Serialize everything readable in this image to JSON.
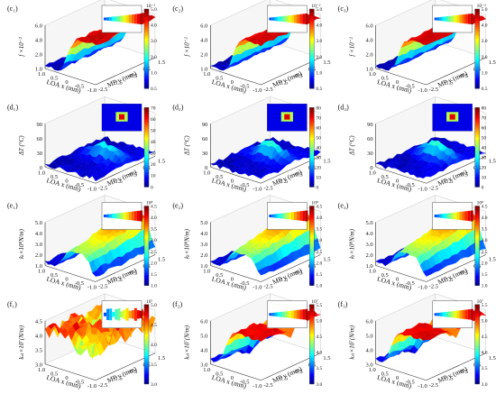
{
  "chart_data": [
    {
      "type": "surface3d",
      "row": 0,
      "col": 0,
      "panel_label": "(c₁)",
      "zlabel": "f ×10⁻²",
      "xlabel": "LOA x (mm)",
      "ylabel": "MP y (mm)",
      "z_ticks": [
        "1.0",
        "2.0",
        "4.0",
        "6.0"
      ],
      "x_ticks": [
        "1.0",
        "0.5",
        "0",
        "-0.5",
        "-1.0"
      ],
      "y_ticks": [
        "-2.5",
        "-1.5",
        "-0.5",
        "0.5",
        "1.5"
      ],
      "colorbar": {
        "exponent": "10⁻²",
        "ticks": [
          "5.0",
          "4.0",
          "3.0",
          "2.0",
          "1.0",
          "0.5"
        ],
        "range": [
          0.5,
          5.0
        ]
      },
      "surface": {
        "shape": "step",
        "low": 0.05,
        "high": 0.92,
        "noise": 0.04
      }
    },
    {
      "type": "surface3d",
      "row": 0,
      "col": 1,
      "panel_label": "(c₂)",
      "zlabel": "f ×10⁻²",
      "xlabel": "LOA x (mm)",
      "ylabel": "MP y (mm)",
      "z_ticks": [
        "1.0",
        "2.0",
        "4.0",
        "6.0"
      ],
      "x_ticks": [
        "1.0",
        "0.5",
        "0",
        "-0.5",
        "-1.0"
      ],
      "y_ticks": [
        "-2.5",
        "-1.5",
        "-0.5",
        "0.5",
        "1.5"
      ],
      "colorbar": {
        "exponent": "10⁻²",
        "ticks": [
          "5.0",
          "4.0",
          "3.0",
          "2.0",
          "1.0",
          "0.5"
        ],
        "range": [
          0.5,
          5.0
        ]
      },
      "surface": {
        "shape": "step",
        "low": 0.05,
        "high": 0.92,
        "noise": 0.03
      }
    },
    {
      "type": "surface3d",
      "row": 0,
      "col": 2,
      "panel_label": "(c₃)",
      "zlabel": "f ×10⁻²",
      "xlabel": "LOA x (mm)",
      "ylabel": "MP y (mm)",
      "z_ticks": [
        "1.0",
        "2.0",
        "4.0",
        "6.0"
      ],
      "x_ticks": [
        "1.0",
        "0.5",
        "0",
        "-0.5",
        "-1.0"
      ],
      "y_ticks": [
        "-2.5",
        "-1.5",
        "-0.5",
        "0.5",
        "1.5"
      ],
      "colorbar": {
        "exponent": "10⁻²",
        "ticks": [
          "5.0",
          "4.0",
          "3.0",
          "2.0",
          "1.0",
          "0.5"
        ],
        "range": [
          0.5,
          5.0
        ]
      },
      "surface": {
        "shape": "step",
        "low": 0.05,
        "high": 0.92,
        "noise": 0.03
      }
    },
    {
      "type": "surface3d",
      "row": 1,
      "col": 0,
      "panel_label": "(d₁)",
      "zlabel": "ΔT (°C)",
      "xlabel": "LOA x (mm)",
      "ylabel": "MP y (mm)",
      "z_ticks": [
        "0",
        "30",
        "60",
        "90"
      ],
      "x_ticks": [
        "1.0",
        "0.5",
        "0",
        "-0.5",
        "-1.0"
      ],
      "y_ticks": [
        "-2.5",
        "-1.5",
        "-0.5",
        "0.5",
        "1.5"
      ],
      "colorbar": {
        "exponent": "",
        "ticks": [
          "70",
          "60",
          "50",
          "40",
          "30",
          "20",
          "10",
          "0"
        ],
        "range": [
          0,
          70
        ]
      },
      "surface": {
        "shape": "ridge",
        "low": 0.02,
        "high": 0.55,
        "noise": 0.05
      }
    },
    {
      "type": "surface3d",
      "row": 1,
      "col": 1,
      "panel_label": "(d₂)",
      "zlabel": "ΔT (°C)",
      "xlabel": "LOA x (mm)",
      "ylabel": "MP y (mm)",
      "z_ticks": [
        "0",
        "30",
        "60",
        "90"
      ],
      "x_ticks": [
        "1.0",
        "0.5",
        "0",
        "-0.5",
        "-1.0"
      ],
      "y_ticks": [
        "-2.5",
        "-1.5",
        "-0.5",
        "0.5",
        "1.5"
      ],
      "colorbar": {
        "exponent": "",
        "ticks": [
          "80",
          "70",
          "60",
          "50",
          "40",
          "30",
          "20",
          "10",
          "0"
        ],
        "range": [
          0,
          80
        ]
      },
      "surface": {
        "shape": "ridge",
        "low": 0.02,
        "high": 0.6,
        "noise": 0.05
      }
    },
    {
      "type": "surface3d",
      "row": 1,
      "col": 2,
      "panel_label": "(d₃)",
      "zlabel": "ΔT (°C)",
      "xlabel": "LOA x (mm)",
      "ylabel": "MP y (mm)",
      "z_ticks": [
        "0",
        "30",
        "60",
        "90"
      ],
      "x_ticks": [
        "1.0",
        "0.5",
        "0",
        "-0.5",
        "-1.0"
      ],
      "y_ticks": [
        "-2.5",
        "-1.5",
        "-0.5",
        "0.5",
        "1.5"
      ],
      "colorbar": {
        "exponent": "",
        "ticks": [
          "80",
          "70",
          "60",
          "50",
          "40",
          "30",
          "20",
          "10",
          "0"
        ],
        "range": [
          0,
          80
        ]
      },
      "surface": {
        "shape": "ridge",
        "low": 0.02,
        "high": 0.62,
        "noise": 0.05
      }
    },
    {
      "type": "surface3d",
      "row": 2,
      "col": 0,
      "panel_label": "(e₁)",
      "zlabel": "kₜ×10⁸N/m)",
      "xlabel": "LOA x (mm)",
      "ylabel": "MP y (mm)",
      "z_ticks": [
        "1.0",
        "2.0",
        "3.0",
        "4.0",
        "5.0"
      ],
      "x_ticks": [
        "1.0",
        "0.5",
        "0",
        "-0.5",
        "-1.0"
      ],
      "y_ticks": [
        "-2.5",
        "-1.5",
        "-0.5",
        "0.5",
        "1.5"
      ],
      "colorbar": {
        "exponent": "10⁸",
        "ticks": [
          "4.5",
          "4.0",
          "3.5",
          "3.0",
          "2.5",
          "2.0",
          "1.5",
          "1.0"
        ],
        "range": [
          1.0,
          4.5
        ]
      },
      "surface": {
        "shape": "plateau",
        "low": 0.08,
        "high": 0.88,
        "noise": 0.04
      }
    },
    {
      "type": "surface3d",
      "row": 2,
      "col": 1,
      "panel_label": "(e₂)",
      "zlabel": "kₜ×10⁸N/m)",
      "xlabel": "LOA x (mm)",
      "ylabel": "MP y (mm)",
      "z_ticks": [
        "1.0",
        "2.0",
        "3.0",
        "4.0",
        "5.0"
      ],
      "x_ticks": [
        "1.0",
        "0.5",
        "0",
        "-0.5",
        "-1.0"
      ],
      "y_ticks": [
        "-2.5",
        "-1.5",
        "-0.5",
        "0.5",
        "1.5"
      ],
      "colorbar": {
        "exponent": "10⁸",
        "ticks": [
          "4.5",
          "4.0",
          "3.5",
          "3.0",
          "2.5",
          "2.0",
          "1.5",
          "1.0"
        ],
        "range": [
          1.0,
          4.5
        ]
      },
      "surface": {
        "shape": "plateau",
        "low": 0.08,
        "high": 0.88,
        "noise": 0.03
      }
    },
    {
      "type": "surface3d",
      "row": 2,
      "col": 2,
      "panel_label": "(e₃)",
      "zlabel": "kₜ×10⁸N/m)",
      "xlabel": "LOA x (mm)",
      "ylabel": "MP y (mm)",
      "z_ticks": [
        "1.0",
        "2.0",
        "3.0",
        "4.0",
        "5.0"
      ],
      "x_ticks": [
        "1.0",
        "0.5",
        "0",
        "-0.5",
        "-1.0"
      ],
      "y_ticks": [
        "-2.5",
        "-1.5",
        "-0.5",
        "0.5",
        "1.5"
      ],
      "colorbar": {
        "exponent": "10⁸",
        "ticks": [
          "4.5",
          "4.0",
          "3.5",
          "3.0",
          "2.5",
          "2.0",
          "1.5",
          "1.0"
        ],
        "range": [
          1.0,
          4.5
        ]
      },
      "surface": {
        "shape": "plateau",
        "low": 0.08,
        "high": 0.88,
        "noise": 0.03
      }
    },
    {
      "type": "surface3d",
      "row": 3,
      "col": 0,
      "panel_label": "(f₁)",
      "zlabel": "kₛₗ×10⁷(N/m)",
      "xlabel": "LOA x (mm)",
      "ylabel": "MP y (mm)",
      "z_ticks": [
        "3.0",
        "3.5",
        "4.0",
        "4.5"
      ],
      "x_ticks": [
        "1.0",
        "0.5",
        "0",
        "-0.5",
        "-1.0"
      ],
      "y_ticks": [
        "-2.5",
        "-1.5",
        "-0.5",
        "0.5",
        "1.5"
      ],
      "colorbar": {
        "exponent": "10⁷",
        "ticks": [
          "5.0",
          "4.5",
          "4.0",
          "3.5",
          "3.0"
        ],
        "range": [
          3.0,
          5.0
        ]
      },
      "surface": {
        "shape": "rough",
        "low": 0.55,
        "high": 0.85,
        "noise": 0.22
      }
    },
    {
      "type": "surface3d",
      "row": 3,
      "col": 1,
      "panel_label": "(f₂)",
      "zlabel": "kₛₗ×10⁷(N/m)",
      "xlabel": "LOA x (mm)",
      "ylabel": "MP y (mm)",
      "z_ticks": [
        "3.0",
        "4.0",
        "5.0",
        "6.0"
      ],
      "x_ticks": [
        "1.0",
        "0.5",
        "0",
        "-0.5",
        "-1.0"
      ],
      "y_ticks": [
        "-2.5",
        "-1.5",
        "-0.5",
        "0.5",
        "1.5"
      ],
      "colorbar": {
        "exponent": "10⁷",
        "ticks": [
          "5.5",
          "5.0",
          "4.5",
          "4.0",
          "3.5",
          "3.0"
        ],
        "range": [
          3.0,
          5.5
        ]
      },
      "surface": {
        "shape": "mesa",
        "low": 0.1,
        "high": 0.9,
        "noise": 0.04
      }
    },
    {
      "type": "surface3d",
      "row": 3,
      "col": 2,
      "panel_label": "(f₃)",
      "zlabel": "kₛₗ×10⁷(N/m)",
      "xlabel": "LOA x (mm)",
      "ylabel": "MP y (mm)",
      "z_ticks": [
        "3.0",
        "4.0",
        "5.0",
        "6.0"
      ],
      "x_ticks": [
        "1.0",
        "0.5",
        "0",
        "-0.5",
        "-1.0"
      ],
      "y_ticks": [
        "-2.5",
        "-1.5",
        "-0.5",
        "0.5",
        "1.5"
      ],
      "colorbar": {
        "exponent": "10⁷",
        "ticks": [
          "5.5",
          "5.0",
          "4.5",
          "4.0",
          "3.5",
          "3.0"
        ],
        "range": [
          3.0,
          5.5
        ]
      },
      "surface": {
        "shape": "mesa",
        "low": 0.1,
        "high": 0.9,
        "noise": 0.04
      }
    }
  ]
}
